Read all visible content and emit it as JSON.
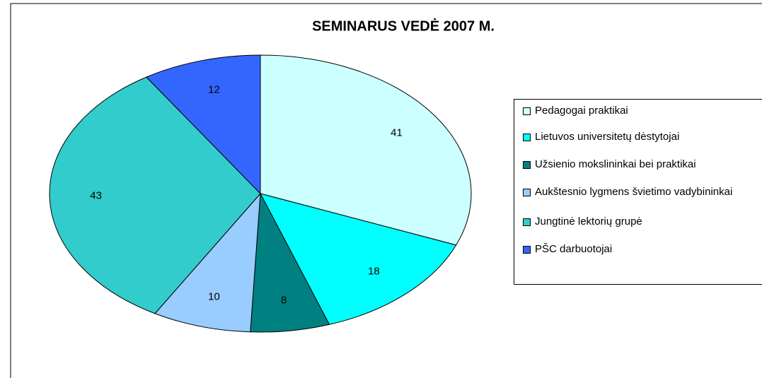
{
  "chart_data": {
    "type": "pie",
    "title": "SEMINARUS VEDĖ 2007 M.",
    "categories": [
      "Pedagogai praktikai",
      "Lietuvos universitetų dėstytojai",
      "Užsienio mokslininkai bei praktikai",
      "Aukštesnio lygmens švietimo vadybininkai",
      "Jungtinė lektorių grupė",
      "PŠC darbuotojai"
    ],
    "values": [
      41,
      18,
      8,
      10,
      43,
      12
    ],
    "colors": [
      "#ccffff",
      "#00ffff",
      "#008080",
      "#99ccff",
      "#33cccc",
      "#3366ff"
    ],
    "legend": "right"
  }
}
